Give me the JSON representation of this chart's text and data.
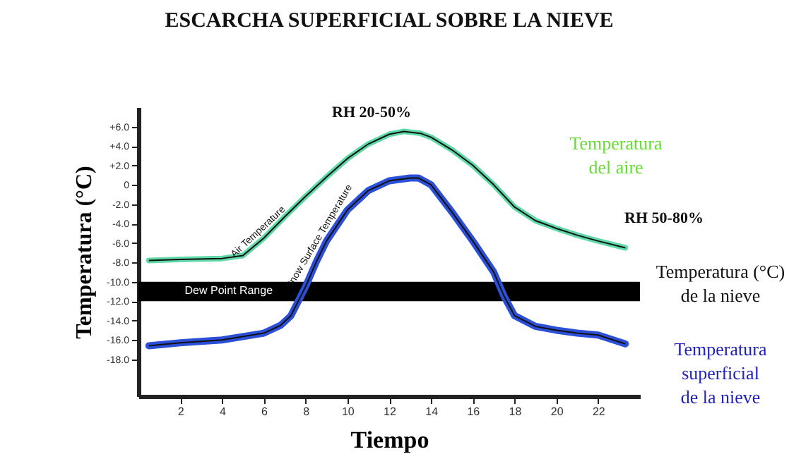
{
  "chart_data": {
    "type": "line",
    "title": "ESCARCHA SUPERFICIAL SOBRE LA NIEVE",
    "xlabel": "Tiempo",
    "ylabel": "Temperatura (°C)",
    "xlim": [
      0,
      24
    ],
    "xticks": [
      2,
      4,
      6,
      8,
      10,
      12,
      14,
      16,
      18,
      20,
      22
    ],
    "ylim": [
      -21.8,
      8
    ],
    "yticks": [
      {
        "value": 6,
        "label": "+6.0"
      },
      {
        "value": 4,
        "label": "+4.0"
      },
      {
        "value": 2,
        "label": "+2.0"
      },
      0,
      {
        "value": -2,
        "label": "-2.0"
      },
      {
        "value": -4,
        "label": "-4.0"
      },
      {
        "value": -6,
        "label": "-6.0"
      },
      {
        "value": -8,
        "label": "-8.0"
      },
      {
        "value": -10,
        "label": "-10.0"
      },
      {
        "value": -12,
        "label": "-12.0"
      },
      {
        "value": -14,
        "label": "-14.0"
      },
      {
        "value": -16,
        "label": "-16.0"
      },
      {
        "value": -18,
        "label": "-18.0"
      }
    ],
    "grid": false,
    "series": [
      {
        "name": "Air Temperature",
        "color": "#5fd9a8",
        "x": [
          0.5,
          2,
          4,
          5,
          6,
          7,
          8,
          9,
          10,
          11,
          12,
          12.7,
          13.5,
          14,
          15,
          16,
          17,
          18,
          19,
          20,
          21,
          22,
          23.3
        ],
        "values": [
          -7.8,
          -7.7,
          -7.6,
          -7.3,
          -5.5,
          -3.3,
          -1.2,
          0.8,
          2.7,
          4.2,
          5.2,
          5.5,
          5.3,
          4.9,
          3.6,
          2,
          0,
          -2.3,
          -3.7,
          -4.5,
          -5.2,
          -5.8,
          -6.5
        ]
      },
      {
        "name": "Snow Surface Temperature",
        "color": "#2b4fd6",
        "x": [
          0.5,
          2,
          4,
          6,
          6.8,
          7.3,
          8,
          8.5,
          9,
          10,
          11,
          12,
          13,
          13.4,
          14,
          15,
          16,
          17,
          17.5,
          18,
          19,
          20,
          21,
          22,
          23.3
        ],
        "values": [
          -16.6,
          -16.3,
          -16,
          -15.3,
          -14.5,
          -13.5,
          -10.5,
          -8,
          -5.8,
          -2.6,
          -0.6,
          0.4,
          0.7,
          0.7,
          0,
          -2.8,
          -5.8,
          -9,
          -11.5,
          -13.5,
          -14.6,
          -15,
          -15.3,
          -15.5,
          -16.4
        ]
      }
    ],
    "bands": [
      {
        "axis": "y",
        "from": -10,
        "to": -12,
        "label": "Dew Point Range",
        "color": "#000000"
      }
    ],
    "annotations": [
      "RH 20-50%",
      "Temperatura del aire",
      "RH 50-80%",
      "Temperatura (°C) de la nieve",
      "Temperatura superficial de la nieve"
    ]
  }
}
